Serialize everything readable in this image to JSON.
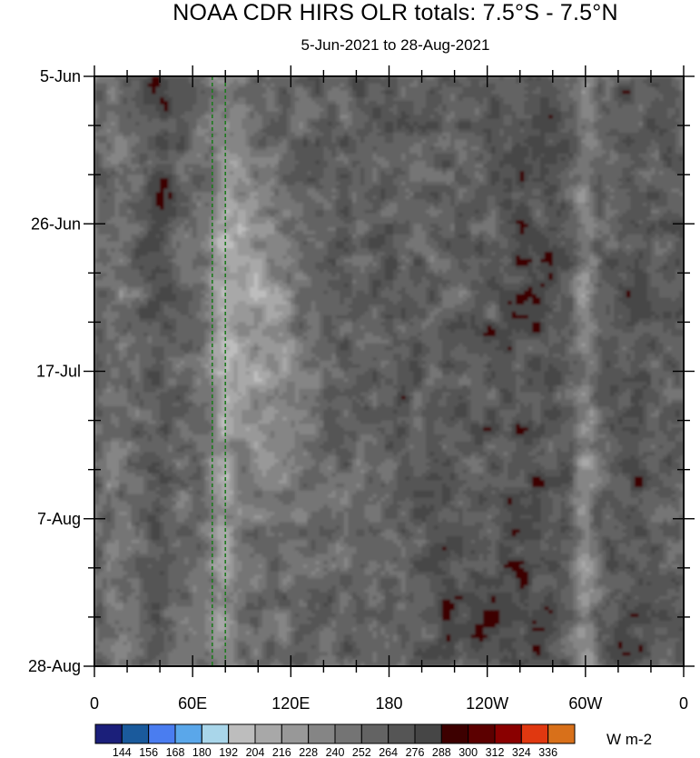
{
  "chart_data": {
    "type": "heatmap",
    "title": "NOAA CDR HIRS OLR totals: 7.5°S - 7.5°N",
    "subtitle": "5-Jun-2021 to 28-Aug-2021",
    "y_tick_labels": [
      "5-Jun",
      "26-Jun",
      "17-Jul",
      "7-Aug",
      "28-Aug"
    ],
    "x_tick_labels": [
      "0",
      "60E",
      "120E",
      "180",
      "120W",
      "60W",
      "0"
    ],
    "x_range_deg_east": [
      0,
      360
    ],
    "y_range_days": [
      0,
      84
    ],
    "colorbar": {
      "levels": [
        "144",
        "156",
        "168",
        "180",
        "192",
        "204",
        "216",
        "228",
        "240",
        "252",
        "264",
        "276",
        "288",
        "300",
        "312",
        "324",
        "336"
      ],
      "colors": [
        "#1b1f7a",
        "#1a5a9c",
        "#4a7df0",
        "#5aa7ea",
        "#a9d6ea",
        "#bdbdbd",
        "#a8a8a8",
        "#989898",
        "#858585",
        "#747474",
        "#636363",
        "#555555",
        "#464646",
        "#3d0000",
        "#5c0000",
        "#8a0000",
        "#e03810",
        "#d8701a"
      ],
      "units": "W m-2"
    },
    "reference_lines_deg_east": [
      72,
      80
    ]
  }
}
